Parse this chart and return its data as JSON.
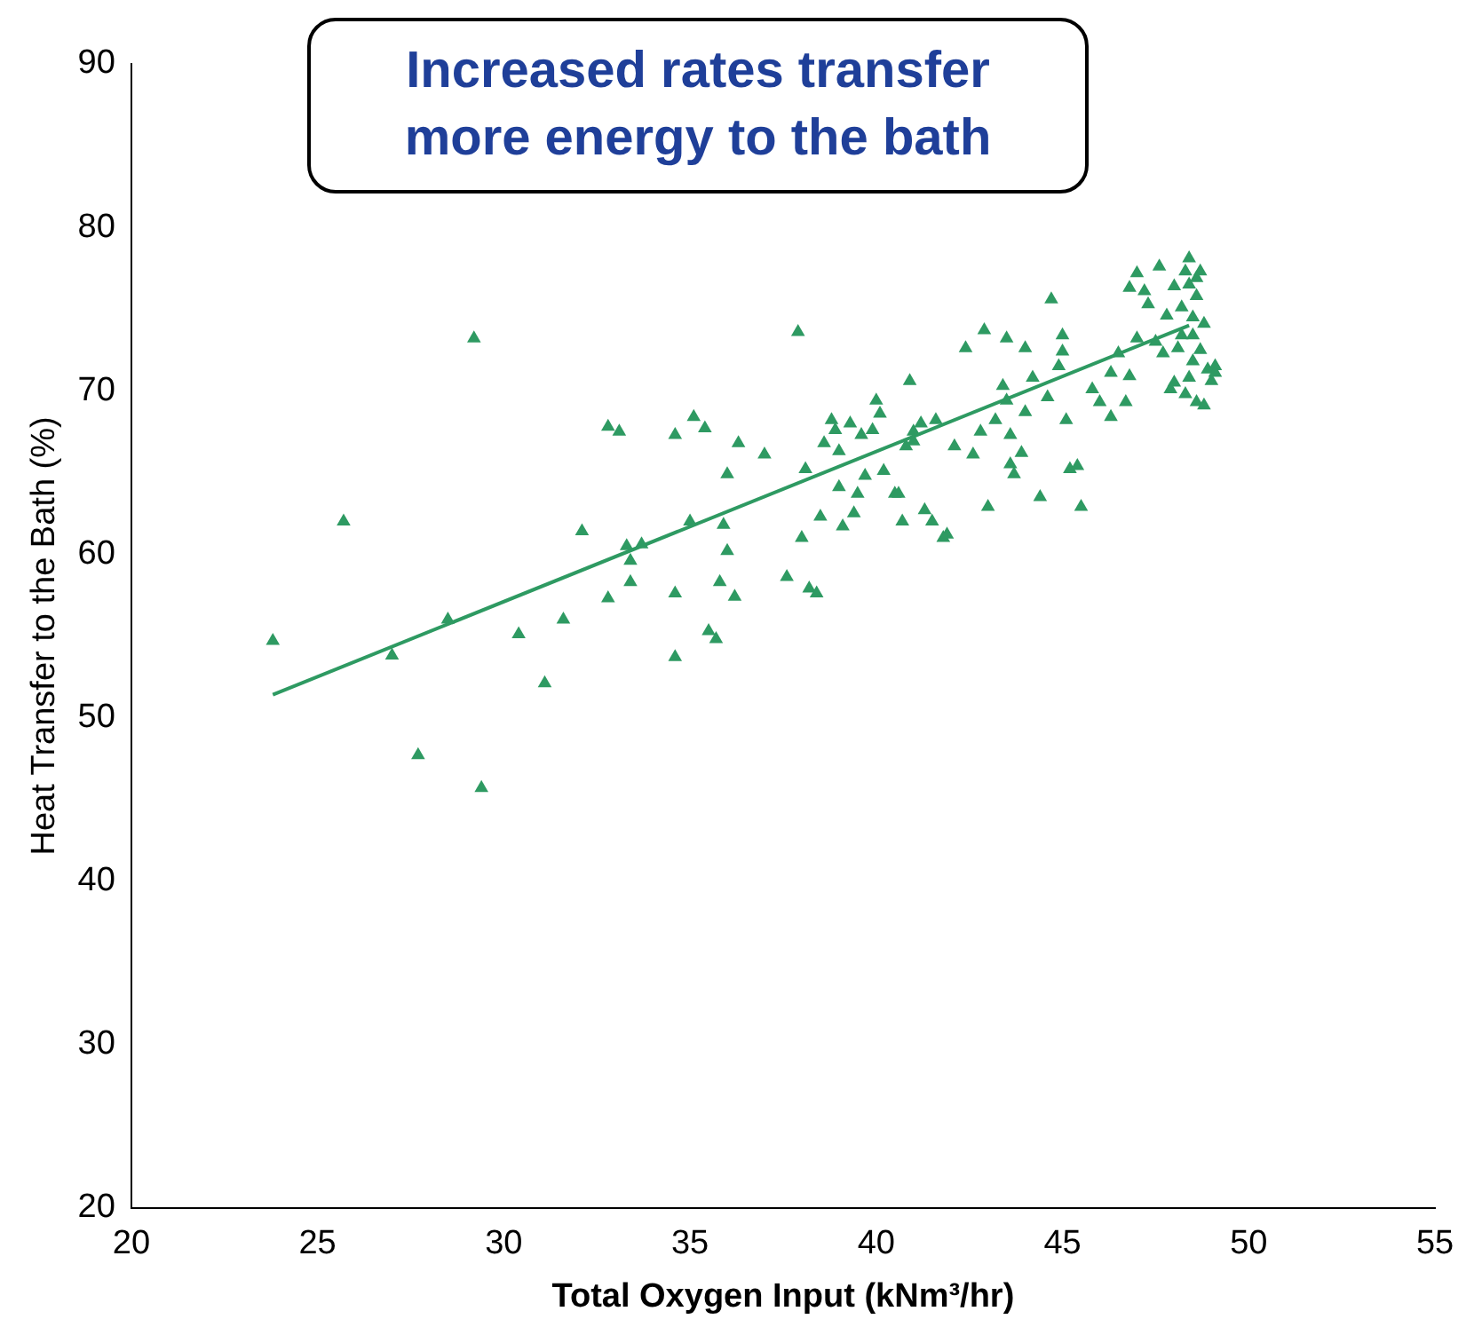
{
  "chart_data": {
    "type": "scatter",
    "xlabel": "Total Oxygen Input (kNm³/hr)",
    "ylabel": "Heat Transfer to the Bath (%)",
    "annotations": [
      "Increased rates transfer more energy to the bath"
    ],
    "xlim": [
      20,
      55
    ],
    "xticks": [
      20,
      25,
      30,
      35,
      40,
      45,
      50,
      55
    ],
    "ylim": [
      20,
      90
    ],
    "yticks": [
      20,
      30,
      40,
      50,
      60,
      70,
      80,
      90
    ],
    "grid": false,
    "legend": false,
    "marker": "triangle",
    "series": [
      {
        "color": "#2e9a62",
        "x": [
          23.8,
          25.7,
          27,
          27.7,
          28.5,
          29.2,
          29.4,
          30.4,
          31.1,
          31.6,
          32.1,
          32.8,
          33.1,
          32.8,
          33.3,
          33.4,
          33.4,
          33.7,
          34.6,
          34.6,
          34.6,
          35.1,
          35,
          35.4,
          35.5,
          35.7,
          35.8,
          35.9,
          36,
          36,
          36.2,
          36.3,
          37,
          37.6,
          37.9,
          38,
          38.1,
          38.2,
          38.4,
          38.5,
          38.6,
          38.8,
          38.9,
          39,
          39,
          39.1,
          39.3,
          39.4,
          39.5,
          39.6,
          39.7,
          39.9,
          40.1,
          40.2,
          40,
          40.5,
          40.6,
          40.7,
          40.8,
          41,
          41,
          40.9,
          41.2,
          41.3,
          41.5,
          41.6,
          41.8,
          41.9,
          42.1,
          42.4,
          42.6,
          42.8,
          42.9,
          43,
          43.2,
          43.4,
          43.5,
          43.5,
          43.6,
          43.6,
          43.7,
          43.9,
          44,
          44,
          44.2,
          44.4,
          44.6,
          44.7,
          44.9,
          45,
          45,
          45.1,
          45.2,
          45.4,
          45.5,
          45.8,
          46,
          46.3,
          46.3,
          46.5,
          46.7,
          46.8,
          46.8,
          47,
          47,
          47.2,
          47.3,
          47.5,
          47.6,
          47.7,
          47.8,
          47.9,
          48,
          48,
          48.1,
          48.2,
          48.2,
          48.3,
          48.3,
          48.4,
          48.4,
          48.5,
          48.5,
          48.5,
          48.6,
          48.6,
          48.7,
          48.7,
          48.8,
          48.8,
          48.9,
          49.1,
          49,
          48.4,
          48.6,
          49.1
        ],
        "values": [
          54.7,
          62,
          53.8,
          47.7,
          56,
          73.2,
          45.7,
          55.1,
          52.1,
          56,
          61.4,
          67.8,
          67.5,
          57.3,
          60.5,
          59.6,
          58.3,
          60.6,
          67.3,
          57.6,
          53.7,
          68.4,
          62,
          67.7,
          55.3,
          54.8,
          58.3,
          61.8,
          60.2,
          64.9,
          57.4,
          66.8,
          66.1,
          58.6,
          73.6,
          61,
          65.2,
          57.9,
          57.6,
          62.3,
          66.8,
          68.2,
          67.6,
          66.3,
          64.1,
          61.7,
          68,
          62.5,
          63.7,
          67.3,
          64.8,
          67.6,
          68.6,
          65.1,
          69.4,
          63.7,
          63.7,
          62,
          66.6,
          67.5,
          66.9,
          70.6,
          68,
          62.7,
          62,
          68.2,
          61,
          61.2,
          66.6,
          72.6,
          66.1,
          67.5,
          73.7,
          62.9,
          68.2,
          70.3,
          73.2,
          69.4,
          67.3,
          65.5,
          64.9,
          66.2,
          72.6,
          68.7,
          70.8,
          63.5,
          69.6,
          75.6,
          71.5,
          73.4,
          72.4,
          68.2,
          65.2,
          65.4,
          62.9,
          70.1,
          69.3,
          68.4,
          71.1,
          72.3,
          69.3,
          70.9,
          76.3,
          73.2,
          77.2,
          76.1,
          75.3,
          73,
          77.6,
          72.3,
          74.6,
          70.1,
          76.4,
          70.5,
          72.6,
          73.4,
          75.1,
          77.3,
          69.8,
          78.1,
          76.5,
          74.5,
          73.4,
          71.8,
          75.8,
          69.3,
          77.3,
          72.5,
          74.1,
          69.1,
          71.3,
          71.5,
          70.6,
          70.8,
          76.9,
          71.1
        ]
      },
      {
        "type": "line",
        "marker": "none",
        "color": "#2e9a62",
        "x": [
          23.8,
          48.4
        ],
        "values": [
          51.4,
          74
        ]
      }
    ]
  }
}
